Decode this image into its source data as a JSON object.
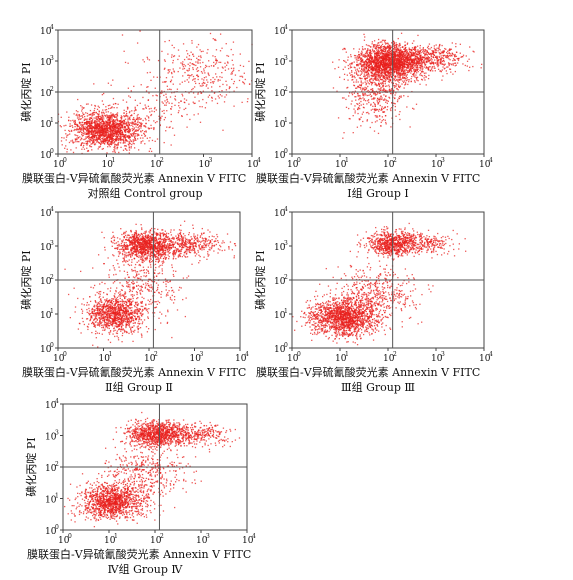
{
  "chart_data": [
    {
      "type": "scatter",
      "title": "对照组 Control group",
      "xlabel": "膜联蛋白-V异硫氰酸荧光素  Annexin V FITC",
      "ylabel": "碘化丙啶 PI",
      "x_scale": "log",
      "y_scale": "log",
      "xlim": [
        1,
        10000
      ],
      "ylim": [
        1,
        10000
      ],
      "x_ticks": [
        "10",
        "10",
        "10",
        "10",
        "10"
      ],
      "x_tick_exponents": [
        "0",
        "1",
        "2",
        "3",
        "4"
      ],
      "y_ticks": [
        "10",
        "10",
        "10",
        "10",
        "10"
      ],
      "y_tick_exponents": [
        "0",
        "1",
        "2",
        "3",
        "4"
      ],
      "gate": {
        "x": 125,
        "y": 100
      },
      "point_color": "#e8201e",
      "clusters": [
        {
          "x_center": 10,
          "y_center": 6,
          "x_spread": 0.38,
          "y_spread": 0.3,
          "count": 1600
        },
        {
          "x_center": 900,
          "y_center": 400,
          "x_spread": 0.6,
          "y_spread": 0.55,
          "count": 350
        },
        {
          "x_center": 120,
          "y_center": 30,
          "x_spread": 0.5,
          "y_spread": 0.45,
          "count": 150
        }
      ]
    },
    {
      "type": "scatter",
      "title": "Ⅰ组 Group Ⅰ",
      "xlabel": "膜联蛋白-V异硫氰酸荧光素  Annexin V FITC",
      "ylabel": "碘化丙啶 PI",
      "x_scale": "log",
      "y_scale": "log",
      "xlim": [
        1,
        10000
      ],
      "ylim": [
        1,
        10000
      ],
      "x_ticks": [
        "10",
        "10",
        "10",
        "10",
        "10"
      ],
      "x_tick_exponents": [
        "0",
        "1",
        "2",
        "3",
        "4"
      ],
      "y_ticks": [
        "10",
        "10",
        "10",
        "10",
        "10"
      ],
      "y_tick_exponents": [
        "0",
        "1",
        "2",
        "3",
        "4"
      ],
      "gate": {
        "x": 125,
        "y": 100
      },
      "point_color": "#e8201e",
      "clusters": [
        {
          "x_center": 110,
          "y_center": 900,
          "x_spread": 0.35,
          "y_spread": 0.28,
          "count": 1900
        },
        {
          "x_center": 700,
          "y_center": 1200,
          "x_spread": 0.4,
          "y_spread": 0.22,
          "count": 500
        },
        {
          "x_center": 60,
          "y_center": 150,
          "x_spread": 0.3,
          "y_spread": 0.45,
          "count": 450
        },
        {
          "x_center": 40,
          "y_center": 20,
          "x_spread": 0.3,
          "y_spread": 0.35,
          "count": 80
        }
      ]
    },
    {
      "type": "scatter",
      "title": "Ⅱ组 Group Ⅱ",
      "xlabel": "膜联蛋白-V异硫氰酸荧光素  Annexin V FITC",
      "ylabel": "碘化丙啶 PI",
      "x_scale": "log",
      "y_scale": "log",
      "xlim": [
        1,
        10000
      ],
      "ylim": [
        1,
        10000
      ],
      "x_ticks": [
        "10",
        "10",
        "10",
        "10",
        "10"
      ],
      "x_tick_exponents": [
        "0",
        "1",
        "2",
        "3",
        "4"
      ],
      "y_ticks": [
        "10",
        "10",
        "10",
        "10",
        "10"
      ],
      "y_tick_exponents": [
        "0",
        "1",
        "2",
        "3",
        "4"
      ],
      "gate": {
        "x": 125,
        "y": 100
      },
      "point_color": "#e8201e",
      "clusters": [
        {
          "x_center": 90,
          "y_center": 1000,
          "x_spread": 0.32,
          "y_spread": 0.22,
          "count": 1100
        },
        {
          "x_center": 700,
          "y_center": 1100,
          "x_spread": 0.4,
          "y_spread": 0.2,
          "count": 400
        },
        {
          "x_center": 18,
          "y_center": 10,
          "x_spread": 0.32,
          "y_spread": 0.28,
          "count": 1000
        },
        {
          "x_center": 70,
          "y_center": 60,
          "x_spread": 0.45,
          "y_spread": 0.5,
          "count": 350
        }
      ]
    },
    {
      "type": "scatter",
      "title": "Ⅲ组 Group Ⅲ",
      "xlabel": "膜联蛋白-V异硫氰酸荧光素  Annexin V FITC",
      "ylabel": "碘化丙啶 PI",
      "x_scale": "log",
      "y_scale": "log",
      "xlim": [
        1,
        10000
      ],
      "ylim": [
        1,
        10000
      ],
      "x_ticks": [
        "10",
        "10",
        "10",
        "10",
        "10"
      ],
      "x_tick_exponents": [
        "0",
        "1",
        "2",
        "3",
        "4"
      ],
      "y_ticks": [
        "10",
        "10",
        "10",
        "10",
        "10"
      ],
      "y_tick_exponents": [
        "0",
        "1",
        "2",
        "3",
        "4"
      ],
      "gate": {
        "x": 125,
        "y": 100
      },
      "point_color": "#e8201e",
      "clusters": [
        {
          "x_center": 120,
          "y_center": 1200,
          "x_spread": 0.25,
          "y_spread": 0.18,
          "count": 700
        },
        {
          "x_center": 600,
          "y_center": 1200,
          "x_spread": 0.35,
          "y_spread": 0.15,
          "count": 250
        },
        {
          "x_center": 12,
          "y_center": 8,
          "x_spread": 0.35,
          "y_spread": 0.28,
          "count": 1500
        },
        {
          "x_center": 60,
          "y_center": 40,
          "x_spread": 0.4,
          "y_spread": 0.4,
          "count": 450
        }
      ]
    },
    {
      "type": "scatter",
      "title": "Ⅳ组 Group Ⅳ",
      "xlabel": "膜联蛋白-V异硫氰酸荧光素  Annexin V FITC",
      "ylabel": "碘化丙啶 PI",
      "x_scale": "log",
      "y_scale": "log",
      "xlim": [
        1,
        10000
      ],
      "ylim": [
        1,
        10000
      ],
      "x_ticks": [
        "10",
        "10",
        "10",
        "10",
        "10"
      ],
      "x_tick_exponents": [
        "0",
        "1",
        "2",
        "3",
        "4"
      ],
      "y_ticks": [
        "10",
        "10",
        "10",
        "10",
        "10"
      ],
      "y_tick_exponents": [
        "0",
        "1",
        "2",
        "3",
        "4"
      ],
      "gate": {
        "x": 125,
        "y": 100
      },
      "point_color": "#e8201e",
      "clusters": [
        {
          "x_center": 100,
          "y_center": 1100,
          "x_spread": 0.3,
          "y_spread": 0.2,
          "count": 900
        },
        {
          "x_center": 700,
          "y_center": 1100,
          "x_spread": 0.4,
          "y_spread": 0.18,
          "count": 350
        },
        {
          "x_center": 12,
          "y_center": 8,
          "x_spread": 0.35,
          "y_spread": 0.28,
          "count": 1200
        },
        {
          "x_center": 60,
          "y_center": 60,
          "x_spread": 0.45,
          "y_spread": 0.45,
          "count": 400
        }
      ]
    }
  ]
}
